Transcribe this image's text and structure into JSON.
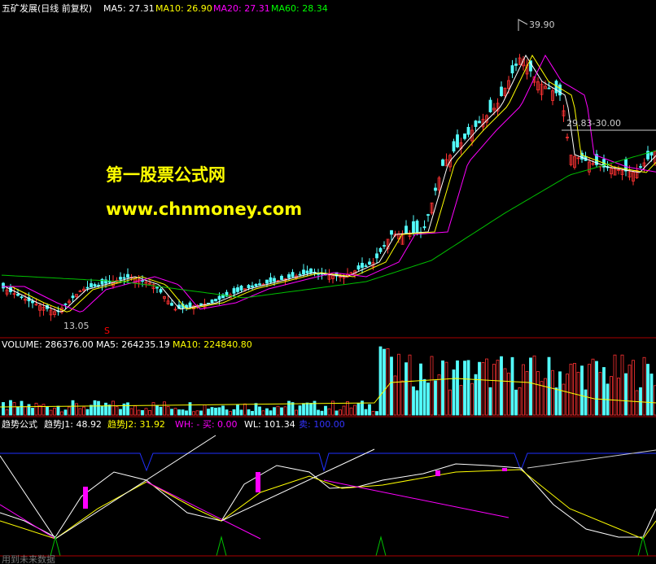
{
  "price_panel": {
    "stock": "五矿发展(日线 前复权)",
    "ma5": "MA5: 27.31",
    "ma10": "MA10: 26.90",
    "ma20": "MA20: 27.31",
    "ma60": "MA60: 28.34",
    "high_label": "39.90",
    "low_label": "13.05",
    "range_label": "29.83-30.00",
    "signal": "S",
    "watermark_name": "第一股票公式网",
    "watermark_url": "www.chnmoney.com"
  },
  "volume_panel": {
    "volume": "VOLUME: 286376.00",
    "ma5": "MA5: 264235.19",
    "ma10": "MA10: 224840.80"
  },
  "indicator_panel": {
    "name": "趋势公式",
    "j1": "趋势J1: 48.92",
    "j2": "趋势J2: 31.92",
    "wh": "WH: - 买: 0.00",
    "wl": "WL: 101.34",
    "sell": "卖: 100.00",
    "footer": "用到未来数据"
  }
}
